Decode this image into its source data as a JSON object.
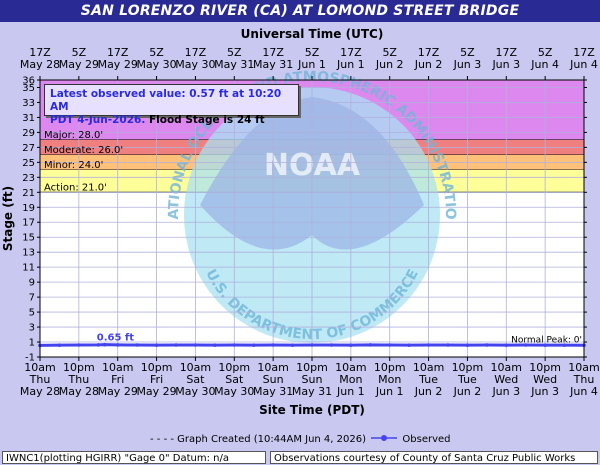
{
  "title": "SAN LORENZO RIVER (CA) AT LOMOND STREET BRIDGE",
  "info_box": {
    "line1": "Latest observed value: 0.57 ft at 10:20 AM",
    "line2_blue": "PDT 4-Jun-2026.",
    "line2_black": " Flood Stage is 24 ft"
  },
  "colors": {
    "frame": "#c8c8f0",
    "title_bar": "#2a2a95",
    "major": "#dd88ee",
    "moderate": "#f08080",
    "minor": "#ffc07a",
    "action": "#ffff99",
    "observed": "#4444ee",
    "grid": "#b0b0dd"
  },
  "footer": {
    "graph_created": "Graph Created (10:44AM Jun 4, 2026)",
    "observed_label": "Observed",
    "left": "IWNC1(plotting HGIRR) \"Gage 0\" Datum: n/a",
    "right": "Observations courtesy of County of Santa Cruz Public Works"
  },
  "chart_data": {
    "type": "line",
    "top_axis_title": "Universal Time (UTC)",
    "bottom_axis_title": "Site Time (PDT)",
    "ylabel": "Stage (ft)",
    "ylim": [
      -1,
      36
    ],
    "yticks": [
      -1,
      1,
      3,
      5,
      7,
      9,
      11,
      13,
      15,
      17,
      19,
      21,
      23,
      25,
      27,
      29,
      31,
      33,
      35,
      36
    ],
    "x_range_hours": [
      0,
      144
    ],
    "bottom_ticks": [
      {
        "hour": 0,
        "l1": "10am",
        "l2": "Thu",
        "l3": "May 28"
      },
      {
        "hour": 12,
        "l1": "10pm",
        "l2": "Thu",
        "l3": "May 28"
      },
      {
        "hour": 24,
        "l1": "10am",
        "l2": "Fri",
        "l3": "May 29"
      },
      {
        "hour": 36,
        "l1": "10pm",
        "l2": "Fri",
        "l3": "May 29"
      },
      {
        "hour": 48,
        "l1": "10am",
        "l2": "Sat",
        "l3": "May 30"
      },
      {
        "hour": 60,
        "l1": "10pm",
        "l2": "Sat",
        "l3": "May 30"
      },
      {
        "hour": 72,
        "l1": "10am",
        "l2": "Sun",
        "l3": "May 31"
      },
      {
        "hour": 84,
        "l1": "10pm",
        "l2": "Sun",
        "l3": "May 31"
      },
      {
        "hour": 96,
        "l1": "10am",
        "l2": "Mon",
        "l3": "Jun 1"
      },
      {
        "hour": 108,
        "l1": "10pm",
        "l2": "Mon",
        "l3": "Jun 1"
      },
      {
        "hour": 120,
        "l1": "10am",
        "l2": "Tue",
        "l3": "Jun 2"
      },
      {
        "hour": 132,
        "l1": "10pm",
        "l2": "Tue",
        "l3": "Jun 2"
      },
      {
        "hour": 144,
        "l1": "10am",
        "l2": "Wed",
        "l3": "Jun 3"
      },
      {
        "hour": 156,
        "l1": "10pm",
        "l2": "Wed",
        "l3": "Jun 3"
      },
      {
        "hour": 168,
        "l1": "10am",
        "l2": "Thu",
        "l3": "Jun 4"
      }
    ],
    "top_ticks": [
      {
        "hour": 0,
        "l1": "17Z",
        "l2": "May 28"
      },
      {
        "hour": 12,
        "l1": "5Z",
        "l2": "May 29"
      },
      {
        "hour": 24,
        "l1": "17Z",
        "l2": "May 29"
      },
      {
        "hour": 36,
        "l1": "5Z",
        "l2": "May 30"
      },
      {
        "hour": 48,
        "l1": "17Z",
        "l2": "May 30"
      },
      {
        "hour": 60,
        "l1": "5Z",
        "l2": "May 31"
      },
      {
        "hour": 72,
        "l1": "17Z",
        "l2": "May 31"
      },
      {
        "hour": 84,
        "l1": "5Z",
        "l2": "Jun 1"
      },
      {
        "hour": 96,
        "l1": "17Z",
        "l2": "Jun 1"
      },
      {
        "hour": 108,
        "l1": "5Z",
        "l2": "Jun 2"
      },
      {
        "hour": 120,
        "l1": "17Z",
        "l2": "Jun 2"
      },
      {
        "hour": 132,
        "l1": "5Z",
        "l2": "Jun 3"
      },
      {
        "hour": 144,
        "l1": "17Z",
        "l2": "Jun 3"
      },
      {
        "hour": 156,
        "l1": "5Z",
        "l2": "Jun 4"
      },
      {
        "hour": 168,
        "l1": "17Z",
        "l2": "Jun 4"
      }
    ],
    "flood_categories": [
      {
        "name": "Major",
        "label": "Major: 28.0'",
        "from": 28,
        "to": 36
      },
      {
        "name": "Moderate",
        "label": "Moderate: 26.0'",
        "from": 26,
        "to": 28
      },
      {
        "name": "Minor",
        "label": "Minor: 24.0'",
        "from": 24,
        "to": 26
      },
      {
        "name": "Action",
        "label": "Action: 21.0'",
        "from": 21,
        "to": 24
      }
    ],
    "peak_label": "0.65 ft",
    "normal_peak_label": "Normal Peak: 0'",
    "series": [
      {
        "name": "Observed",
        "x_hours": [
          0,
          6,
          12,
          18,
          20,
          24,
          30,
          36,
          42,
          48,
          54,
          60,
          66,
          72,
          78,
          84,
          90,
          96,
          102,
          108,
          114,
          120,
          126,
          132,
          138,
          144,
          150,
          156,
          162,
          168
        ],
        "values": [
          0.55,
          0.58,
          0.6,
          0.62,
          0.65,
          0.62,
          0.6,
          0.58,
          0.6,
          0.6,
          0.58,
          0.6,
          0.58,
          0.6,
          0.58,
          0.6,
          0.6,
          0.58,
          0.62,
          0.6,
          0.58,
          0.6,
          0.6,
          0.58,
          0.6,
          0.58,
          0.6,
          0.58,
          0.58,
          0.57
        ]
      }
    ],
    "watermark": [
      "NATIONAL OCEANIC AND ATMOSPHERIC ADMINISTRATION",
      "NOAA",
      "U.S. DEPARTMENT OF COMMERCE"
    ]
  }
}
